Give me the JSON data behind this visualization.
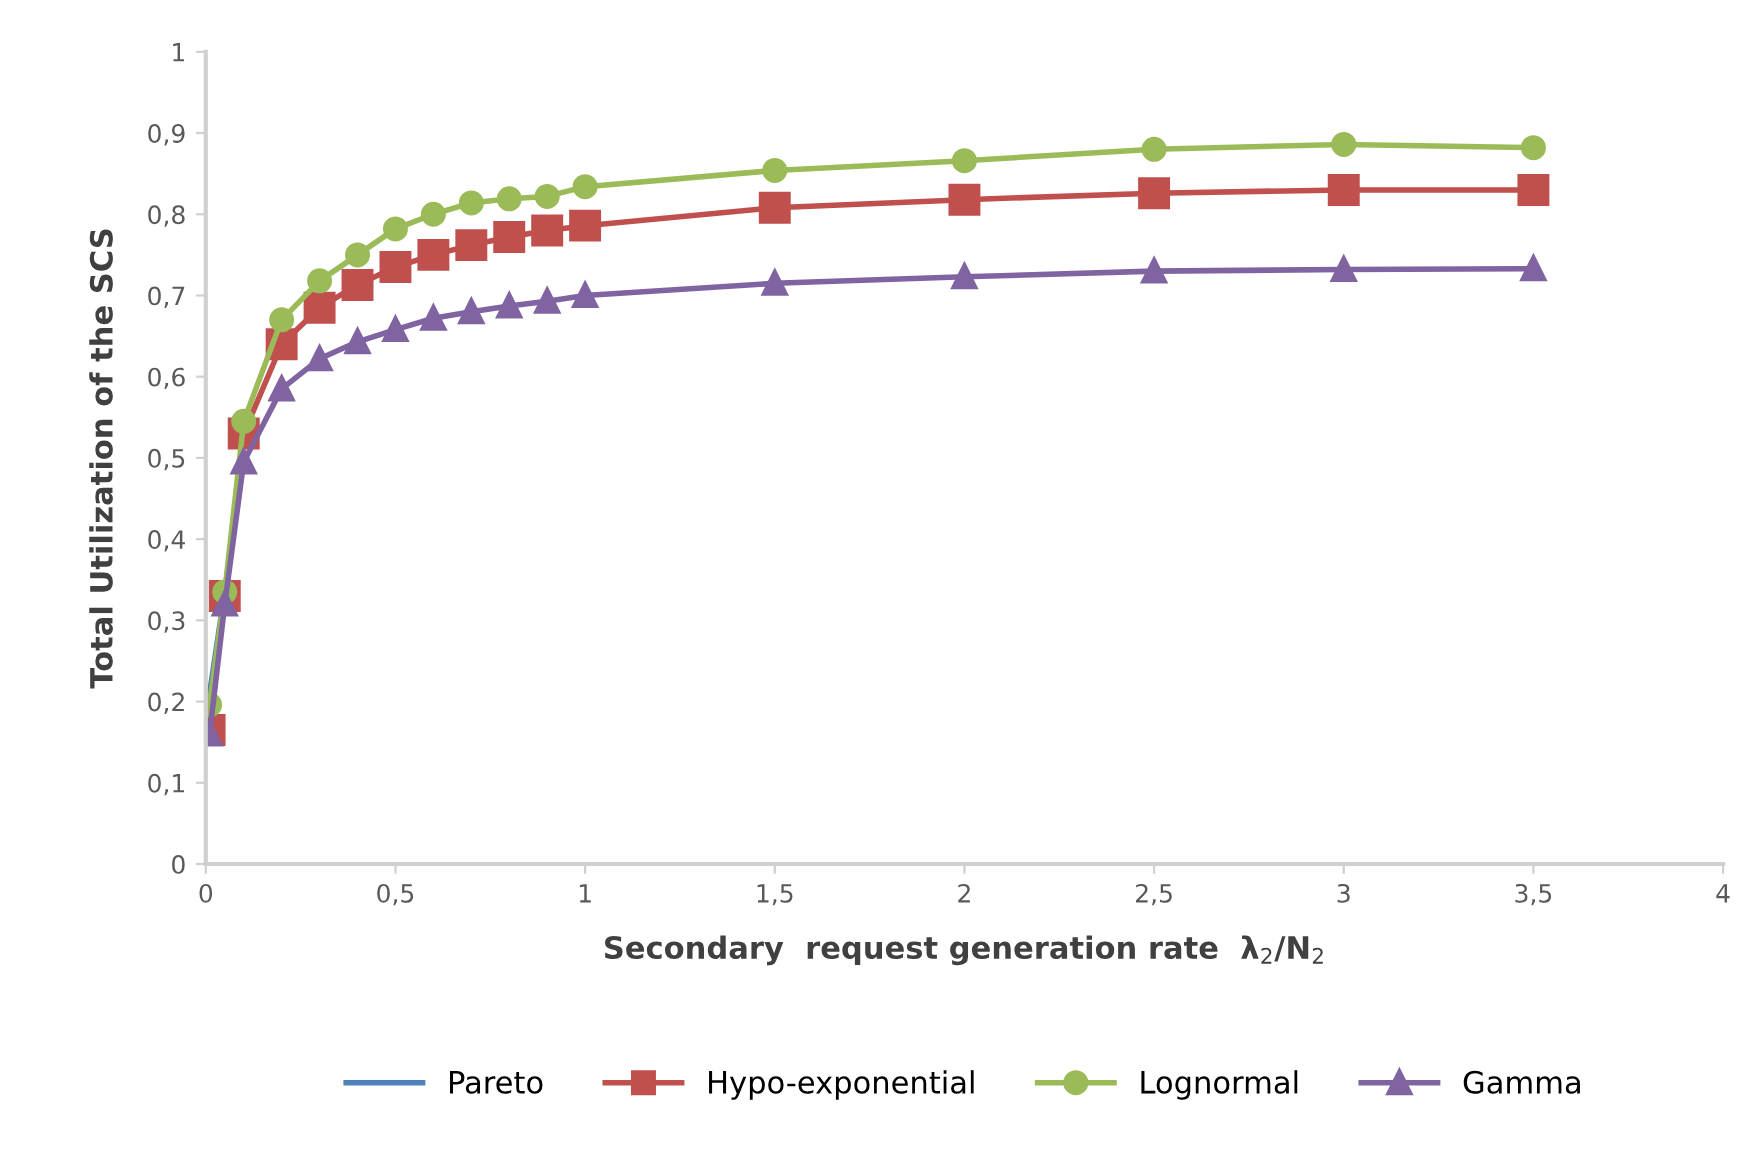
{
  "chart_data": {
    "type": "line",
    "xlabel": "Secondary  request generation rate  λ$_{2}$/N$_{2}$",
    "ylabel": "Total Utilization of the SCS",
    "x": [
      0.01,
      0.05,
      0.1,
      0.2,
      0.3,
      0.4,
      0.5,
      0.6,
      0.7,
      0.8,
      0.9,
      1,
      1.5,
      2,
      2.5,
      3,
      3.5
    ],
    "series": [
      {
        "name": "Pareto",
        "color": "#4f81bd",
        "marker": "none",
        "values": [
          0.21,
          0.335,
          null,
          null,
          null,
          null,
          null,
          null,
          null,
          null,
          null,
          null,
          null,
          null,
          null,
          null,
          null
        ]
      },
      {
        "name": "Hypo-exponential",
        "color": "#c0504d",
        "marker": "square",
        "values": [
          0.165,
          0.33,
          0.53,
          0.64,
          0.685,
          0.713,
          0.735,
          0.75,
          0.762,
          0.772,
          0.78,
          0.786,
          0.808,
          0.818,
          0.826,
          0.83,
          0.83
        ]
      },
      {
        "name": "Lognormal",
        "color": "#9bbb59",
        "marker": "circle",
        "values": [
          0.196,
          0.335,
          0.545,
          0.67,
          0.718,
          0.75,
          0.782,
          0.8,
          0.814,
          0.819,
          0.822,
          0.834,
          0.854,
          0.866,
          0.88,
          0.886,
          0.882
        ]
      },
      {
        "name": "Gamma",
        "color": "#8064a2",
        "marker": "triangle",
        "values": [
          0.16,
          0.32,
          0.495,
          0.585,
          0.622,
          0.643,
          0.658,
          0.672,
          0.68,
          0.687,
          0.693,
          0.7,
          0.715,
          0.723,
          0.73,
          0.732,
          0.733
        ]
      }
    ],
    "xlim": [
      0,
      4
    ],
    "xticks": [
      0,
      {
        "value": 0.5,
        "label": "0,5"
      },
      1,
      {
        "value": 1.5,
        "label": "1,5"
      },
      2,
      {
        "value": 2.5,
        "label": "2,5"
      },
      3,
      {
        "value": 3.5,
        "label": "3,5"
      },
      4
    ],
    "ylim": [
      0,
      1
    ],
    "yticks": [
      0,
      {
        "value": 0.1,
        "label": "0,1"
      },
      {
        "value": 0.2,
        "label": "0,2"
      },
      {
        "value": 0.3,
        "label": "0,3"
      },
      {
        "value": 0.4,
        "label": "0,4"
      },
      {
        "value": 0.5,
        "label": "0,5"
      },
      {
        "value": 0.6,
        "label": "0,6"
      },
      {
        "value": 0.7,
        "label": "0,7"
      },
      {
        "value": 0.8,
        "label": "0,8"
      },
      {
        "value": 0.9,
        "label": "0,9"
      },
      1
    ],
    "grid": false,
    "legend": "bottom"
  }
}
